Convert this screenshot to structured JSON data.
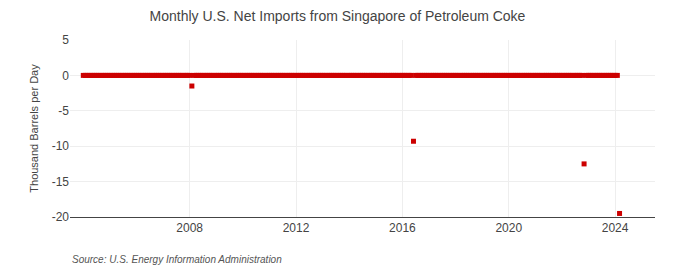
{
  "chart_data": {
    "type": "line",
    "title": "Monthly U.S. Net Imports from Singapore of Petroleum Coke",
    "ylabel": "Thousand Barrels per Day",
    "source": "Source: U.S. Energy Information Administration",
    "color": "#cc0000",
    "marker": "square",
    "line_style": "dashed",
    "grid": true,
    "xlim": [
      2003.5,
      2025.5
    ],
    "xticks": [
      2008,
      2012,
      2016,
      2020,
      2024
    ],
    "ylim": [
      -20,
      5
    ],
    "yticks": [
      -20,
      -15,
      -10,
      -5,
      0,
      5
    ],
    "x": [
      2004.0,
      2004.083,
      2004.167,
      2004.25,
      2004.333,
      2004.417,
      2004.5,
      2004.583,
      2004.667,
      2004.75,
      2004.833,
      2004.917,
      2005.0,
      2005.083,
      2005.167,
      2005.25,
      2005.333,
      2005.417,
      2005.5,
      2005.583,
      2005.667,
      2005.75,
      2005.833,
      2005.917,
      2006.0,
      2006.083,
      2006.167,
      2006.25,
      2006.333,
      2006.417,
      2006.5,
      2006.583,
      2006.667,
      2006.75,
      2006.833,
      2006.917,
      2007.0,
      2007.083,
      2007.167,
      2007.25,
      2007.333,
      2007.417,
      2007.5,
      2007.583,
      2007.667,
      2007.75,
      2007.833,
      2007.917,
      2008.0,
      2008.083,
      2008.167,
      2008.25,
      2008.333,
      2008.417,
      2008.5,
      2008.583,
      2008.667,
      2008.75,
      2008.833,
      2008.917,
      2009.0,
      2009.083,
      2009.167,
      2009.25,
      2009.333,
      2009.417,
      2009.5,
      2009.583,
      2009.667,
      2009.75,
      2009.833,
      2009.917,
      2010.0,
      2010.083,
      2010.167,
      2010.25,
      2010.333,
      2010.417,
      2010.5,
      2010.583,
      2010.667,
      2010.75,
      2010.833,
      2010.917,
      2011.0,
      2011.083,
      2011.167,
      2011.25,
      2011.333,
      2011.417,
      2011.5,
      2011.583,
      2011.667,
      2011.75,
      2011.833,
      2011.917,
      2012.0,
      2012.083,
      2012.167,
      2012.25,
      2012.333,
      2012.417,
      2012.5,
      2012.583,
      2012.667,
      2012.75,
      2012.833,
      2012.917,
      2013.0,
      2013.083,
      2013.167,
      2013.25,
      2013.333,
      2013.417,
      2013.5,
      2013.583,
      2013.667,
      2013.75,
      2013.833,
      2013.917,
      2014.0,
      2014.083,
      2014.167,
      2014.25,
      2014.333,
      2014.417,
      2014.5,
      2014.583,
      2014.667,
      2014.75,
      2014.833,
      2014.917,
      2015.0,
      2015.083,
      2015.167,
      2015.25,
      2015.333,
      2015.417,
      2015.5,
      2015.583,
      2015.667,
      2015.75,
      2015.833,
      2015.917,
      2016.0,
      2016.083,
      2016.167,
      2016.25,
      2016.333,
      2016.417,
      2016.5,
      2016.583,
      2016.667,
      2016.75,
      2016.833,
      2016.917,
      2017.0,
      2017.083,
      2017.167,
      2017.25,
      2017.333,
      2017.417,
      2017.5,
      2017.583,
      2017.667,
      2017.75,
      2017.833,
      2017.917,
      2018.0,
      2018.083,
      2018.167,
      2018.25,
      2018.333,
      2018.417,
      2018.5,
      2018.583,
      2018.667,
      2018.75,
      2018.833,
      2018.917,
      2019.0,
      2019.083,
      2019.167,
      2019.25,
      2019.333,
      2019.417,
      2019.5,
      2019.583,
      2019.667,
      2019.75,
      2019.833,
      2019.917,
      2020.0,
      2020.083,
      2020.167,
      2020.25,
      2020.333,
      2020.417,
      2020.5,
      2020.583,
      2020.667,
      2020.75,
      2020.833,
      2020.917,
      2021.0,
      2021.083,
      2021.167,
      2021.25,
      2021.333,
      2021.417,
      2021.5,
      2021.583,
      2021.667,
      2021.75,
      2021.833,
      2021.917,
      2022.0,
      2022.083,
      2022.167,
      2022.25,
      2022.333,
      2022.417,
      2022.5,
      2022.583,
      2022.667,
      2022.75,
      2022.833,
      2022.917,
      2023.0,
      2023.083,
      2023.167,
      2023.25,
      2023.333,
      2023.417,
      2023.5,
      2023.583,
      2023.667,
      2023.75,
      2023.833,
      2023.917,
      2024.0,
      2024.083,
      2024.167
    ],
    "values": [
      0,
      0,
      0,
      0,
      0,
      0,
      0,
      0,
      0,
      0,
      0,
      0,
      0,
      0,
      0,
      0,
      0,
      0,
      0,
      0,
      0,
      0,
      0,
      0,
      0,
      0,
      0,
      0,
      0,
      0,
      0,
      0,
      0,
      0,
      0,
      0,
      0,
      0,
      0,
      0,
      0,
      0,
      0,
      0,
      0,
      0,
      0,
      0,
      0,
      -1.5,
      0,
      0,
      0,
      0,
      0,
      0,
      0,
      0,
      0,
      0,
      0,
      0,
      0,
      0,
      0,
      0,
      0,
      0,
      0,
      0,
      0,
      0,
      0,
      0,
      0,
      0,
      0,
      0,
      0,
      0,
      0,
      0,
      0,
      0,
      0,
      0,
      0,
      0,
      0,
      0,
      0,
      0,
      0,
      0,
      0,
      0,
      0,
      0,
      0,
      0,
      0,
      0,
      0,
      0,
      0,
      0,
      0,
      0,
      0,
      0,
      0,
      0,
      0,
      0,
      0,
      0,
      0,
      0,
      0,
      0,
      0,
      0,
      0,
      0,
      0,
      0,
      0,
      0,
      0,
      0,
      0,
      0,
      0,
      0,
      0,
      0,
      0,
      0,
      0,
      0,
      0,
      0,
      0,
      0,
      0,
      0,
      0,
      0,
      0,
      -9.3,
      0,
      0,
      0,
      0,
      0,
      0,
      0,
      0,
      0,
      0,
      0,
      0,
      0,
      0,
      0,
      0,
      0,
      0,
      0,
      0,
      0,
      0,
      0,
      0,
      0,
      0,
      0,
      0,
      0,
      0,
      0,
      0,
      0,
      0,
      0,
      0,
      0,
      0,
      0,
      0,
      0,
      0,
      0,
      0,
      0,
      0,
      0,
      0,
      0,
      0,
      0,
      0,
      0,
      0,
      0,
      0,
      0,
      0,
      0,
      0,
      0,
      0,
      0,
      0,
      0,
      0,
      0,
      0,
      0,
      0,
      0,
      0,
      0,
      0,
      0,
      0,
      -12.5,
      0,
      0,
      0,
      0,
      0,
      0,
      0,
      0,
      0,
      0,
      0,
      0,
      0,
      0,
      0,
      -19.5
    ]
  }
}
